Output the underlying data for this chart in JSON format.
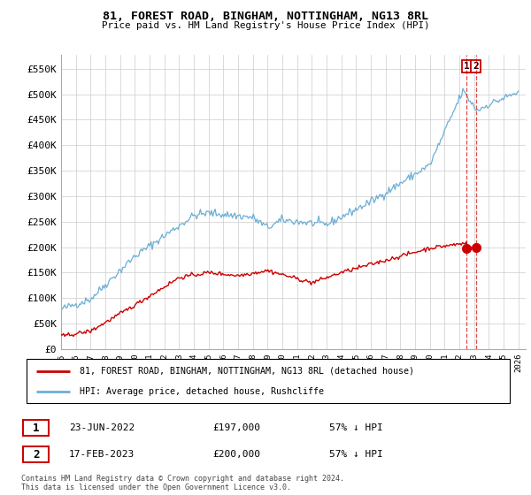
{
  "title": "81, FOREST ROAD, BINGHAM, NOTTINGHAM, NG13 8RL",
  "subtitle": "Price paid vs. HM Land Registry's House Price Index (HPI)",
  "ylabel_ticks": [
    "£0",
    "£50K",
    "£100K",
    "£150K",
    "£200K",
    "£250K",
    "£300K",
    "£350K",
    "£400K",
    "£450K",
    "£500K",
    "£550K"
  ],
  "ytick_values": [
    0,
    50000,
    100000,
    150000,
    200000,
    250000,
    300000,
    350000,
    400000,
    450000,
    500000,
    550000
  ],
  "ylim": [
    0,
    578000
  ],
  "xlim_start": 1995.0,
  "xlim_end": 2026.5,
  "xticks": [
    1995,
    1996,
    1997,
    1998,
    1999,
    2000,
    2001,
    2002,
    2003,
    2004,
    2005,
    2006,
    2007,
    2008,
    2009,
    2010,
    2011,
    2012,
    2013,
    2014,
    2015,
    2016,
    2017,
    2018,
    2019,
    2020,
    2021,
    2022,
    2023,
    2024,
    2025,
    2026
  ],
  "hpi_color": "#6baed6",
  "price_color": "#cc0000",
  "dashed_line_color": "#cc0000",
  "background_color": "#ffffff",
  "grid_color": "#cccccc",
  "transaction1_date": "23-JUN-2022",
  "transaction1_price": "£197,000",
  "transaction1_hpi": "57% ↓ HPI",
  "transaction2_date": "17-FEB-2023",
  "transaction2_price": "£200,000",
  "transaction2_hpi": "57% ↓ HPI",
  "transaction1_x": 2022.48,
  "transaction1_y": 197000,
  "transaction2_x": 2023.13,
  "transaction2_y": 200000,
  "footer": "Contains HM Land Registry data © Crown copyright and database right 2024.\nThis data is licensed under the Open Government Licence v3.0.",
  "legend_line1": "81, FOREST ROAD, BINGHAM, NOTTINGHAM, NG13 8RL (detached house)",
  "legend_line2": "HPI: Average price, detached house, Rushcliffe"
}
